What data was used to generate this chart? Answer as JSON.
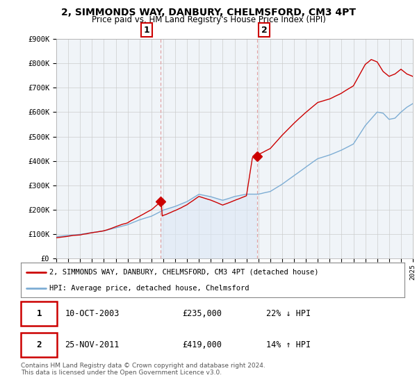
{
  "title": "2, SIMMONDS WAY, DANBURY, CHELMSFORD, CM3 4PT",
  "subtitle": "Price paid vs. HM Land Registry's House Price Index (HPI)",
  "legend_label_red": "2, SIMMONDS WAY, DANBURY, CHELMSFORD, CM3 4PT (detached house)",
  "legend_label_blue": "HPI: Average price, detached house, Chelmsford",
  "transaction1_date": "10-OCT-2003",
  "transaction1_price": "£235,000",
  "transaction1_hpi": "22% ↓ HPI",
  "transaction2_date": "25-NOV-2011",
  "transaction2_price": "£419,000",
  "transaction2_hpi": "14% ↑ HPI",
  "footer": "Contains HM Land Registry data © Crown copyright and database right 2024.\nThis data is licensed under the Open Government Licence v3.0.",
  "background_color": "#ffffff",
  "plot_bg_color": "#f0f4f8",
  "grid_color": "#cccccc",
  "red_color": "#cc0000",
  "blue_color": "#7dadd4",
  "blue_fill_color": "#dce8f5",
  "vline_color": "#dd8888",
  "ylim_min": 0,
  "ylim_max": 900000,
  "transaction1_year": 2003.8,
  "transaction2_year": 2011.9,
  "transaction1_price_val": 235000,
  "transaction2_price_val": 419000
}
